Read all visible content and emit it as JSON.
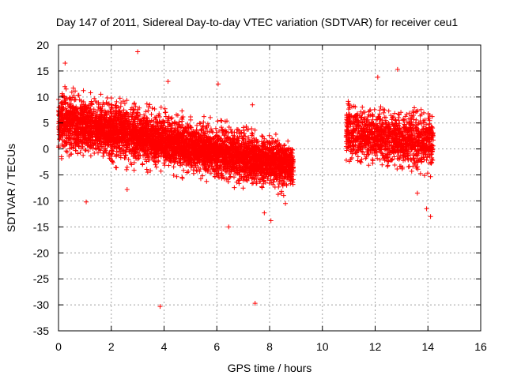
{
  "chart_data": {
    "type": "scatter",
    "title": "Day 147 of 2011, Sidereal Day-to-day VTEC variation (SDTVAR) for receiver ceu1",
    "xlabel": "GPS time / hours",
    "ylabel": "SDTVAR / TECUs",
    "xlim": [
      0,
      16
    ],
    "ylim": [
      -35,
      20
    ],
    "x_ticks": [
      0,
      2,
      4,
      6,
      8,
      10,
      12,
      14,
      16
    ],
    "y_ticks": [
      -35,
      -30,
      -25,
      -20,
      -15,
      -10,
      -5,
      0,
      5,
      10,
      15,
      20
    ],
    "grid": true,
    "marker": "+",
    "series": [
      {
        "name": "SDTVAR",
        "color": "#ff0000",
        "segments": [
          {
            "x_start": 0.0,
            "x_end": 8.9,
            "mean_start": 5.5,
            "mean_end": -3.5,
            "spread_start": 3.2,
            "spread_end": 2.6,
            "count": 5200
          },
          {
            "x_start": 10.9,
            "x_end": 14.2,
            "mean_start": 3.0,
            "mean_end": 1.0,
            "spread_start": 3.2,
            "spread_end": 3.0,
            "count": 1300
          }
        ],
        "outliers": [
          {
            "x": 0.25,
            "y": 16.5
          },
          {
            "x": 3.0,
            "y": 18.7
          },
          {
            "x": 4.15,
            "y": 13.0
          },
          {
            "x": 6.05,
            "y": 12.5
          },
          {
            "x": 1.05,
            "y": -10.2
          },
          {
            "x": 3.85,
            "y": -30.3
          },
          {
            "x": 7.45,
            "y": -29.7
          },
          {
            "x": 6.45,
            "y": -15.0
          },
          {
            "x": 8.05,
            "y": -13.8
          },
          {
            "x": 7.8,
            "y": -12.3
          },
          {
            "x": 12.85,
            "y": 15.3
          },
          {
            "x": 14.1,
            "y": -13.0
          },
          {
            "x": 13.95,
            "y": -11.5
          },
          {
            "x": 12.1,
            "y": 13.8
          },
          {
            "x": 2.6,
            "y": -7.8
          },
          {
            "x": 7.35,
            "y": 8.5
          },
          {
            "x": 8.6,
            "y": -10.5
          },
          {
            "x": 13.6,
            "y": -8.5
          }
        ]
      }
    ]
  }
}
